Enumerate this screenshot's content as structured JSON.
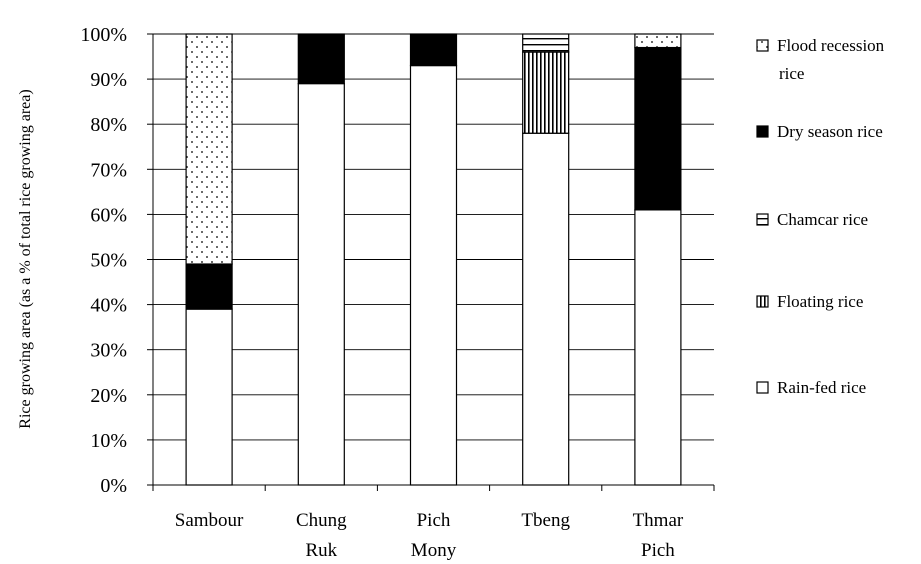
{
  "chart_data": {
    "type": "bar",
    "stacked": true,
    "percent": true,
    "categories": [
      [
        "Sambour"
      ],
      [
        "Chung",
        "Ruk"
      ],
      [
        "Pich",
        "Mony"
      ],
      [
        "Tbeng"
      ],
      [
        "Thmar",
        "Pich"
      ]
    ],
    "series": [
      {
        "name": "Rain-fed rice",
        "pattern": "plain",
        "values": [
          39,
          89,
          93,
          78,
          61
        ]
      },
      {
        "name": "Floating rice",
        "pattern": "vertical-lines",
        "values": [
          0,
          0,
          0,
          18,
          0
        ]
      },
      {
        "name": "Chamcar rice",
        "pattern": "horizontal-lines",
        "values": [
          0,
          0,
          0,
          4,
          0
        ]
      },
      {
        "name": "Dry season rice",
        "pattern": "solid-black",
        "values": [
          10,
          11,
          7,
          0,
          36
        ]
      },
      {
        "name": "Flood recession rice",
        "pattern": "dots",
        "values": [
          51,
          0,
          0,
          0,
          3
        ]
      }
    ],
    "legend": [
      {
        "lines": [
          "Flood recession",
          "rice"
        ],
        "pattern": "dots"
      },
      {
        "lines": [
          "Dry  season rice"
        ],
        "pattern": "solid-black"
      },
      {
        "lines": [
          "Chamcar rice"
        ],
        "pattern": "horizontal-lines"
      },
      {
        "lines": [
          "Floating rice"
        ],
        "pattern": "vertical-lines"
      },
      {
        "lines": [
          "Rain-fed rice"
        ],
        "pattern": "plain"
      }
    ],
    "ylabel": "Rice growing area (as a % of total rice growing area)",
    "xlabel": "",
    "ylim": [
      0,
      100
    ],
    "yticks": [
      "0%",
      "10%",
      "20%",
      "30%",
      "40%",
      "50%",
      "60%",
      "70%",
      "80%",
      "90%",
      "100%"
    ],
    "grid": true,
    "legend_position": "right"
  }
}
